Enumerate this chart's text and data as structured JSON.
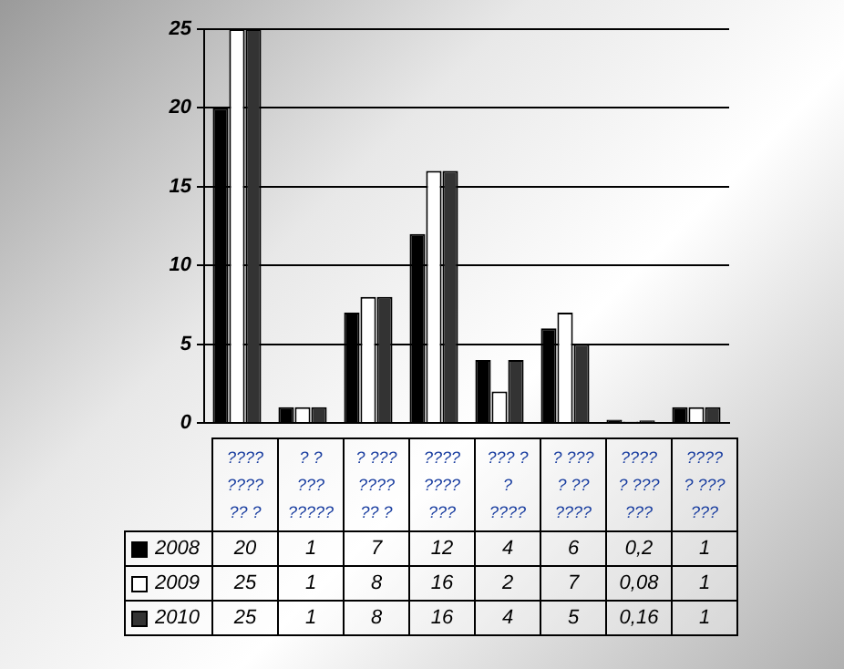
{
  "chart_data": {
    "type": "bar",
    "categories": [
      "????\n????\n?? ?",
      "? ?\n???\n?????",
      "? ???\n????\n?? ?",
      "????\n????\n???",
      "??? ?\n?\n????",
      "? ???\n? ??\n????",
      "????\n? ???\n???",
      "????\n? ???\n???"
    ],
    "series": [
      {
        "name": "2008",
        "color": "#000000",
        "values": [
          20,
          1,
          7,
          12,
          4,
          6,
          0.2,
          1
        ],
        "value_labels": [
          "20",
          "1",
          "7",
          "12",
          "4",
          "6",
          "0,2",
          "1"
        ]
      },
      {
        "name": "2009",
        "color": "#ffffff",
        "values": [
          25,
          1,
          8,
          16,
          2,
          7,
          0.08,
          1
        ],
        "value_labels": [
          "25",
          "1",
          "8",
          "16",
          "2",
          "7",
          "0,08",
          "1"
        ]
      },
      {
        "name": "2010",
        "color": "#333333",
        "values": [
          25,
          1,
          8,
          16,
          4,
          5,
          0.16,
          1
        ],
        "value_labels": [
          "25",
          "1",
          "8",
          "16",
          "4",
          "5",
          "0,16",
          "1"
        ]
      }
    ],
    "ylim": [
      0,
      25
    ],
    "yticks": [
      0,
      5,
      10,
      15,
      20,
      25
    ],
    "grid": "y",
    "legend": "bottom"
  }
}
